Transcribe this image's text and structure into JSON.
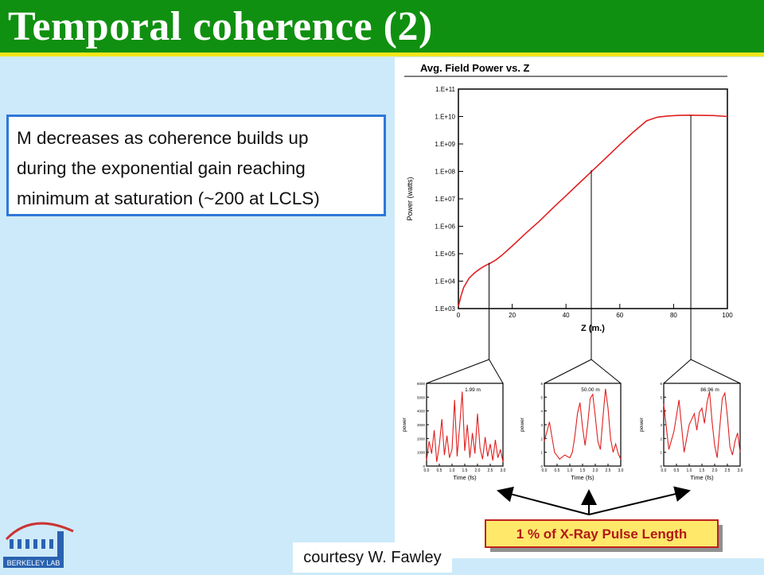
{
  "slide": {
    "title": "Temporal coherence (2)",
    "callout_lines": [
      "M  decreases as coherence builds up",
      "during the exponential gain reaching",
      "minimum at saturation (~200 at LCLS)"
    ],
    "courtesy": "courtesy W. Fawley",
    "logo_text": "BERKELEY LAB",
    "footnote": "",
    "colors": {
      "title_bar": "#109010",
      "accent_line": "#f5e61a",
      "callout_border": "#2f78d8",
      "curve": "#e02020"
    }
  },
  "chart_data": [
    {
      "type": "line",
      "title": "Avg. Field Power vs. Z",
      "xlabel": "Z (m.)",
      "ylabel": "Power (watts)",
      "y_scale": "log",
      "xlim": [
        0,
        100
      ],
      "ylim": [
        1000,
        100000000000
      ],
      "x_ticks": [
        "0",
        "20",
        "40",
        "60",
        "80",
        "100"
      ],
      "y_ticks": [
        "1.E+03",
        "1.E+04",
        "1.E+05",
        "1.E+06",
        "1.E+07",
        "1.E+08",
        "1.E+09",
        "1.E+10",
        "1.E+11"
      ],
      "series": [
        {
          "x": [
            0,
            1,
            2,
            4,
            6,
            8,
            10,
            12,
            14,
            16,
            20,
            25,
            30,
            35,
            40,
            45,
            50,
            55,
            60,
            65,
            70,
            74,
            78,
            82,
            86,
            90,
            95,
            100
          ],
          "y": [
            1200.0,
            3000.0,
            6000.0,
            13000.0,
            20000.0,
            28000.0,
            37000.0,
            46000.0,
            60000.0,
            85000.0,
            190000.0,
            550000.0,
            1500000.0,
            4500000.0,
            13000000.0,
            38000000.0,
            110000000.0,
            320000000.0,
            950000000.0,
            2700000000.0,
            7000000000.0,
            9500000000.0,
            10500000000.0,
            11000000000.0,
            11200000000.0,
            11000000000.0,
            10800000000.0,
            10000000000.0
          ]
        }
      ]
    },
    {
      "type": "line",
      "ylabel": "power",
      "xlabel": "Time (fs)",
      "annotation": "1.99 m",
      "x_ticks": [
        "0.0",
        "0.5",
        "1.0",
        "1.5",
        "2.0",
        "2.5",
        "3.0"
      ],
      "y_ticks": [
        "0",
        "1000",
        "2000",
        "3000",
        "4000",
        "5000",
        "6000"
      ],
      "ylim": [
        0,
        6000
      ],
      "series": [
        {
          "x": [
            0.0,
            0.1,
            0.2,
            0.3,
            0.4,
            0.5,
            0.6,
            0.7,
            0.8,
            0.9,
            1.0,
            1.1,
            1.2,
            1.3,
            1.4,
            1.5,
            1.6,
            1.7,
            1.8,
            1.9,
            2.0,
            2.1,
            2.2,
            2.3,
            2.4,
            2.5,
            2.6,
            2.7,
            2.8,
            2.9,
            3.0
          ],
          "y": [
            400,
            1800,
            900,
            2600,
            300,
            1500,
            3400,
            800,
            2200,
            600,
            1200,
            4800,
            700,
            2900,
            5400,
            1100,
            3000,
            600,
            2400,
            900,
            3800,
            1300,
            500,
            2100,
            700,
            1600,
            400,
            1900,
            600,
            1200,
            300
          ]
        }
      ]
    },
    {
      "type": "line",
      "ylabel": "power",
      "xlabel": "Time (fs)",
      "annotation": "50.00 m",
      "x_ticks": [
        "0.0",
        "0.5",
        "1.0",
        "1.5",
        "2.0",
        "2.5",
        "3.0"
      ],
      "y_ticks": [
        "0",
        "1",
        "2",
        "3",
        "4",
        "5",
        "6"
      ],
      "ylim": [
        0,
        6
      ],
      "series": [
        {
          "x": [
            0.0,
            0.2,
            0.4,
            0.6,
            0.8,
            1.0,
            1.1,
            1.2,
            1.3,
            1.4,
            1.5,
            1.6,
            1.7,
            1.8,
            1.9,
            2.0,
            2.1,
            2.2,
            2.3,
            2.4,
            2.5,
            2.6,
            2.7,
            2.8,
            2.9,
            3.0
          ],
          "y": [
            1.8,
            3.2,
            1.0,
            0.5,
            0.8,
            0.6,
            1.0,
            2.2,
            3.8,
            4.6,
            2.8,
            1.5,
            3.0,
            4.9,
            5.2,
            3.6,
            1.8,
            1.2,
            3.5,
            5.6,
            4.2,
            2.0,
            1.0,
            1.6,
            0.9,
            0.5
          ]
        }
      ]
    },
    {
      "type": "line",
      "ylabel": "power",
      "xlabel": "Time (fs)",
      "annotation": "86.96 m",
      "x_ticks": [
        "0.0",
        "0.5",
        "1.0",
        "1.5",
        "2.0",
        "2.5",
        "3.0"
      ],
      "y_ticks": [
        "0",
        "1",
        "2",
        "3",
        "4",
        "5",
        "6"
      ],
      "ylim": [
        0,
        6
      ],
      "series": [
        {
          "x": [
            0.0,
            0.2,
            0.4,
            0.6,
            0.8,
            1.0,
            1.1,
            1.2,
            1.3,
            1.4,
            1.5,
            1.6,
            1.7,
            1.8,
            1.9,
            2.0,
            2.1,
            2.2,
            2.3,
            2.4,
            2.5,
            2.6,
            2.7,
            2.8,
            2.9,
            3.0
          ],
          "y": [
            4.5,
            1.2,
            2.5,
            4.8,
            1.0,
            3.0,
            3.4,
            3.8,
            2.6,
            3.9,
            4.2,
            3.1,
            4.6,
            5.4,
            3.2,
            1.5,
            0.6,
            2.8,
            4.9,
            5.3,
            3.6,
            1.4,
            0.8,
            1.8,
            2.4,
            1.0
          ]
        }
      ]
    }
  ],
  "pulse_label": "1 % of X-Ray Pulse Length"
}
